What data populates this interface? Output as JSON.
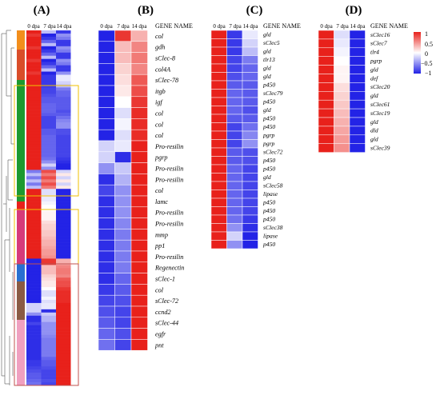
{
  "panels": {
    "A": {
      "label": "(A)",
      "columns": [
        "0 dpa",
        "7 dpa",
        "14 dpa"
      ]
    },
    "B": {
      "label": "(B)",
      "columns": [
        "0 dpa",
        "7 dpa",
        "14 dpa"
      ],
      "gene_header": "GENE NAME"
    },
    "C": {
      "label": "(C)",
      "columns": [
        "0 dpa",
        "7 dpa",
        "14 dpa"
      ],
      "gene_header": "GENE NAME"
    },
    "D": {
      "label": "(D)",
      "columns": [
        "0 dpa",
        "7 dpa",
        "14 dpa"
      ],
      "gene_header": "GENE NAME"
    }
  },
  "legend": {
    "ticks": [
      "1",
      "0.5",
      "0",
      "−0.5",
      "−1"
    ],
    "range": [
      -1,
      1
    ],
    "colors": {
      "high": "#e8211b",
      "mid": "#ffffff",
      "low": "#2323e6"
    }
  },
  "chart_data": [
    {
      "type": "heatmap",
      "title": "",
      "panel": "B",
      "x": [
        "0 dpa",
        "7 dpa",
        "14 dpa"
      ],
      "y": [
        "col",
        "gdh",
        "sClec-8",
        "col4A",
        "sClec-78",
        "itgb",
        "igf",
        "col",
        "col",
        "col",
        "Pro-resilin",
        "pgrp",
        "Pro-resilin",
        "Pro-resilin",
        "col",
        "lamc",
        "Pro-resilin",
        "Pro-resilin",
        "mmp",
        "pp1",
        "Pro-resilin",
        "Regenectin",
        "sClec-1",
        "col",
        "sClec-72",
        "ccnd2",
        "sClec-44",
        "egfr",
        "pnt"
      ],
      "values": [
        [
          -1,
          0.9,
          0.35
        ],
        [
          -1,
          0.3,
          0.55
        ],
        [
          -1,
          0.3,
          0.6
        ],
        [
          -1,
          0.2,
          0.55
        ],
        [
          -1,
          0.15,
          0.75
        ],
        [
          -1,
          0.1,
          0.8
        ],
        [
          -1,
          0.0,
          0.9
        ],
        [
          -1,
          -0.15,
          0.95
        ],
        [
          -1,
          -0.05,
          0.95
        ],
        [
          -1,
          -0.15,
          0.95
        ],
        [
          -0.2,
          -0.1,
          1
        ],
        [
          -0.2,
          -0.95,
          1
        ],
        [
          -0.5,
          -0.25,
          1
        ],
        [
          -0.95,
          -0.35,
          1
        ],
        [
          -0.85,
          -0.5,
          1
        ],
        [
          -0.95,
          -0.5,
          1
        ],
        [
          -0.95,
          -0.5,
          1
        ],
        [
          -0.95,
          -0.55,
          1
        ],
        [
          -0.95,
          -0.6,
          1
        ],
        [
          -0.95,
          -0.6,
          1
        ],
        [
          -0.95,
          -0.6,
          1
        ],
        [
          -0.95,
          -0.6,
          1
        ],
        [
          -0.95,
          -0.7,
          1
        ],
        [
          -0.9,
          -0.75,
          1
        ],
        [
          -0.85,
          -0.8,
          1
        ],
        [
          -0.8,
          -0.85,
          1
        ],
        [
          -0.75,
          -0.85,
          1
        ],
        [
          -0.7,
          -0.8,
          1
        ],
        [
          -0.65,
          -0.85,
          1
        ]
      ],
      "zlim": [
        -1,
        1
      ]
    },
    {
      "type": "heatmap",
      "title": "",
      "panel": "C",
      "x": [
        "0 dpa",
        "7 dpa",
        "14 dpa"
      ],
      "y": [
        "gld",
        "sClec5",
        "gld",
        "tlr13",
        "gld",
        "gld",
        "p450",
        "sClec79",
        "p450",
        "gld",
        "p450",
        "p450",
        "pgrp",
        "pgrp",
        "sClec72",
        "p450",
        "p450",
        "gld",
        "sClec58",
        "lipase",
        "p450",
        "p450",
        "p450",
        "sClec38",
        "lipase",
        "p450"
      ],
      "values": [
        [
          1,
          -0.9,
          -0.1
        ],
        [
          1,
          -0.9,
          -0.2
        ],
        [
          1,
          -0.9,
          -0.3
        ],
        [
          1,
          -0.85,
          -0.6
        ],
        [
          1,
          -0.85,
          -0.7
        ],
        [
          1,
          -0.8,
          -0.7
        ],
        [
          1,
          -0.75,
          -0.75
        ],
        [
          1,
          -0.7,
          -0.75
        ],
        [
          1,
          -0.7,
          -0.75
        ],
        [
          1,
          -0.7,
          -0.8
        ],
        [
          1,
          -0.75,
          -0.75
        ],
        [
          1,
          -0.85,
          -0.65
        ],
        [
          1,
          -0.85,
          -0.55
        ],
        [
          1,
          -0.85,
          -0.5
        ],
        [
          1,
          -0.75,
          -0.8
        ],
        [
          1,
          -0.75,
          -0.8
        ],
        [
          1,
          -0.7,
          -0.85
        ],
        [
          1,
          -0.7,
          -0.85
        ],
        [
          1,
          -0.7,
          -0.85
        ],
        [
          1,
          -0.7,
          -0.85
        ],
        [
          1,
          -0.7,
          -0.85
        ],
        [
          1,
          -0.7,
          -0.85
        ],
        [
          1,
          -0.65,
          -0.9
        ],
        [
          1,
          -0.5,
          -0.95
        ],
        [
          1,
          -0.2,
          -1
        ],
        [
          1,
          -0.5,
          -1
        ]
      ],
      "zlim": [
        -1,
        1
      ]
    },
    {
      "type": "heatmap",
      "title": "",
      "panel": "D",
      "x": [
        "0 dpa",
        "7 dpa",
        "14 dpa"
      ],
      "y": [
        "sClec16",
        "sClec7",
        "tlr4",
        "pgrp",
        "gld",
        "def",
        "sClec20",
        "gld",
        "sClec61",
        "sClec19",
        "gld",
        "dld",
        "gld",
        "sClec39"
      ],
      "values": [
        [
          1,
          -0.15,
          -1
        ],
        [
          1,
          -0.1,
          -1
        ],
        [
          1,
          -0.05,
          -1
        ],
        [
          1,
          0.0,
          -1
        ],
        [
          1,
          0.05,
          -1
        ],
        [
          1,
          0.05,
          -1
        ],
        [
          1,
          0.15,
          -1
        ],
        [
          1,
          0.2,
          -1
        ],
        [
          1,
          0.25,
          -1
        ],
        [
          1,
          0.3,
          -1
        ],
        [
          1,
          0.35,
          -1
        ],
        [
          1,
          0.4,
          -1
        ],
        [
          1,
          0.45,
          -1
        ],
        [
          1,
          0.5,
          -1
        ]
      ],
      "zlim": [
        -1,
        1
      ]
    }
  ]
}
